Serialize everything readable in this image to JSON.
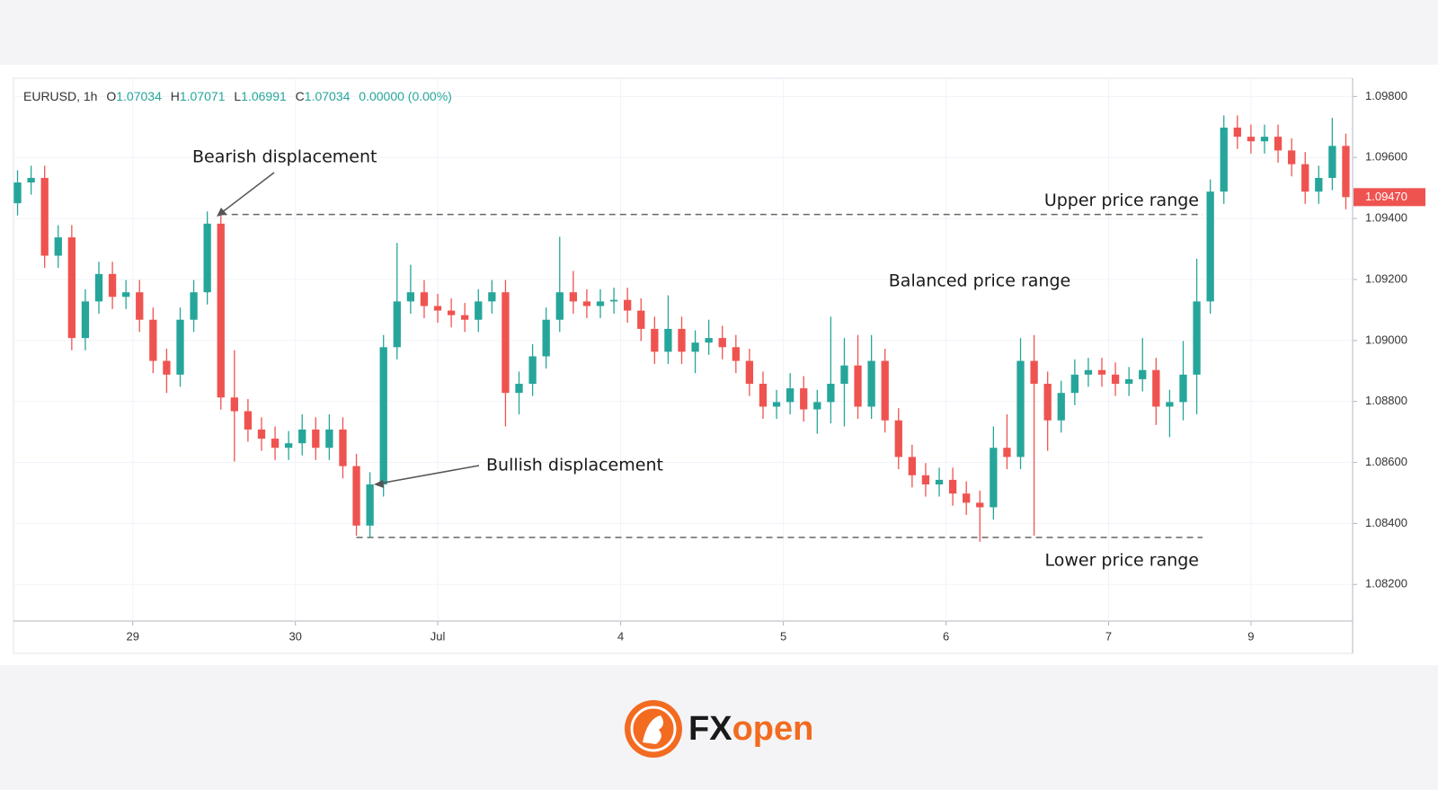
{
  "chart_data": {
    "type": "candlestick",
    "header": {
      "symbol": "EURUSD, 1h",
      "open_label": "O",
      "open": 1.07034,
      "high_label": "H",
      "high": 1.07071,
      "low_label": "L",
      "low": 1.06991,
      "close_label": "C",
      "close": 1.07034,
      "change": "0.00000 (0.00%)"
    },
    "annotations": {
      "bearish": "Bearish displacement",
      "bullish": "Bullish displacement",
      "balanced": "Balanced price range"
    },
    "levels": [
      {
        "label": "Upper price range",
        "value": 1.09413
      },
      {
        "label": "Lower price range",
        "value": 1.08354
      }
    ],
    "last_price": {
      "value": 1.0947,
      "label": "1.09470"
    },
    "up_color": "#26a69a",
    "down_color": "#ef5350",
    "xlim": [
      -0.3,
      98.5
    ],
    "xticks": [
      {
        "value": 8.5,
        "label": "29"
      },
      {
        "value": 20.5,
        "label": "30"
      },
      {
        "value": 31,
        "label": "Jul"
      },
      {
        "value": 44.5,
        "label": "4"
      },
      {
        "value": 56.5,
        "label": "5"
      },
      {
        "value": 68.5,
        "label": "6"
      },
      {
        "value": 80.5,
        "label": "7"
      },
      {
        "value": 91,
        "label": "9"
      }
    ],
    "ylim": [
      1.0808,
      1.0986
    ],
    "yticks": [
      {
        "value": 1.082,
        "label": "1.08200"
      },
      {
        "value": 1.084,
        "label": "1.08400"
      },
      {
        "value": 1.086,
        "label": "1.08600"
      },
      {
        "value": 1.088,
        "label": "1.08800"
      },
      {
        "value": 1.09,
        "label": "1.09000"
      },
      {
        "value": 1.092,
        "label": "1.09200"
      },
      {
        "value": 1.094,
        "label": "1.09400"
      },
      {
        "value": 1.096,
        "label": "1.09600"
      },
      {
        "value": 1.098,
        "label": "1.09800"
      }
    ],
    "grid": true,
    "open": [
      1.0945,
      1.09518,
      1.09533,
      1.09278,
      1.09338,
      1.09008,
      1.09128,
      1.09218,
      1.09143,
      1.09158,
      1.09068,
      1.08933,
      1.08888,
      1.09068,
      1.09158,
      1.09383,
      1.08813,
      1.08768,
      1.08708,
      1.08678,
      1.08648,
      1.08663,
      1.08708,
      1.08648,
      1.08708,
      1.08588,
      1.08393,
      1.08528,
      1.08978,
      1.09128,
      1.09158,
      1.09113,
      1.09098,
      1.09083,
      1.09068,
      1.09128,
      1.09158,
      1.08828,
      1.08858,
      1.08948,
      1.09068,
      1.09158,
      1.09128,
      1.09113,
      1.09128,
      1.09133,
      1.09098,
      1.09038,
      1.08963,
      1.09038,
      1.08963,
      1.08993,
      1.09008,
      1.08978,
      1.08933,
      1.08858,
      1.08783,
      1.08798,
      1.08843,
      1.08774,
      1.08798,
      1.08858,
      1.08918,
      1.08783,
      1.08933,
      1.08738,
      1.08618,
      1.08558,
      1.08528,
      1.08543,
      1.08498,
      1.08468,
      1.08453,
      1.08648,
      1.08618,
      1.08933,
      1.08858,
      1.08738,
      1.08828,
      1.08888,
      1.08903,
      1.08888,
      1.08858,
      1.08873,
      1.08903,
      1.08783,
      1.08798,
      1.08888,
      1.09128,
      1.09488,
      1.09698,
      1.09668,
      1.09653,
      1.09668,
      1.09623,
      1.09578,
      1.09488,
      1.09533,
      1.09638
    ],
    "high": [
      1.09558,
      1.09573,
      1.09573,
      1.09378,
      1.09378,
      1.09168,
      1.09258,
      1.09258,
      1.09198,
      1.09198,
      1.09108,
      1.08973,
      1.09108,
      1.09198,
      1.09423,
      1.09413,
      1.08968,
      1.08808,
      1.08748,
      1.08718,
      1.08703,
      1.08758,
      1.08748,
      1.08758,
      1.08748,
      1.08628,
      1.08568,
      1.09018,
      1.0932,
      1.09248,
      1.09198,
      1.09153,
      1.09138,
      1.09123,
      1.09168,
      1.09198,
      1.09198,
      1.08898,
      1.08988,
      1.09108,
      1.0934,
      1.09228,
      1.09168,
      1.09168,
      1.09173,
      1.09173,
      1.09138,
      1.09078,
      1.09148,
      1.09078,
      1.09033,
      1.09068,
      1.09048,
      1.09018,
      1.08973,
      1.08898,
      1.08838,
      1.08893,
      1.08883,
      1.08838,
      1.09078,
      1.09008,
      1.09018,
      1.09018,
      1.08973,
      1.08778,
      1.08658,
      1.08598,
      1.08583,
      1.08583,
      1.08538,
      1.08508,
      1.08718,
      1.08758,
      1.09008,
      1.09018,
      1.08898,
      1.08868,
      1.08938,
      1.08943,
      1.08943,
      1.08928,
      1.08913,
      1.09008,
      1.08943,
      1.08838,
      1.08998,
      1.09268,
      1.09528,
      1.09738,
      1.09738,
      1.09708,
      1.09708,
      1.09708,
      1.09663,
      1.09618,
      1.09573,
      1.0973,
      1.09678
    ],
    "low": [
      1.0941,
      1.09478,
      1.09238,
      1.09238,
      1.08968,
      1.08968,
      1.09088,
      1.09103,
      1.09103,
      1.09028,
      1.08893,
      1.08828,
      1.08848,
      1.09028,
      1.09118,
      1.08773,
      1.08603,
      1.08668,
      1.08638,
      1.08608,
      1.08608,
      1.08623,
      1.08608,
      1.08608,
      1.08548,
      1.0836,
      1.08353,
      1.08488,
      1.08938,
      1.09088,
      1.09073,
      1.09058,
      1.09043,
      1.09028,
      1.09028,
      1.09088,
      1.08718,
      1.08758,
      1.08818,
      1.08908,
      1.09028,
      1.09088,
      1.09073,
      1.09073,
      1.09088,
      1.09058,
      1.08998,
      1.08923,
      1.08923,
      1.08923,
      1.08893,
      1.08953,
      1.08938,
      1.08893,
      1.08818,
      1.08743,
      1.08743,
      1.08758,
      1.08734,
      1.08694,
      1.08728,
      1.08718,
      1.08743,
      1.08743,
      1.08698,
      1.08578,
      1.08518,
      1.08488,
      1.08488,
      1.08458,
      1.08428,
      1.0834,
      1.08413,
      1.08578,
      1.08578,
      1.0836,
      1.08638,
      1.08698,
      1.08788,
      1.08848,
      1.08848,
      1.08818,
      1.08818,
      1.08833,
      1.08723,
      1.08683,
      1.08738,
      1.08758,
      1.09088,
      1.09448,
      1.09628,
      1.09613,
      1.09613,
      1.09583,
      1.09538,
      1.09448,
      1.09448,
      1.09493,
      1.0943
    ],
    "close": [
      1.09518,
      1.09533,
      1.09278,
      1.09338,
      1.09008,
      1.09128,
      1.09218,
      1.09143,
      1.09158,
      1.09068,
      1.08933,
      1.08888,
      1.09068,
      1.09158,
      1.09383,
      1.08813,
      1.08768,
      1.08708,
      1.08678,
      1.08648,
      1.08663,
      1.08708,
      1.08648,
      1.08708,
      1.08588,
      1.08393,
      1.08528,
      1.08978,
      1.09128,
      1.09158,
      1.09113,
      1.09098,
      1.09083,
      1.09068,
      1.09128,
      1.09158,
      1.08828,
      1.08858,
      1.08948,
      1.09068,
      1.09158,
      1.09128,
      1.09113,
      1.09128,
      1.09133,
      1.09098,
      1.09038,
      1.08963,
      1.09038,
      1.08963,
      1.08993,
      1.09008,
      1.08978,
      1.08933,
      1.08858,
      1.08783,
      1.08798,
      1.08843,
      1.08774,
      1.08798,
      1.08858,
      1.08918,
      1.08783,
      1.08933,
      1.08738,
      1.08618,
      1.08558,
      1.08528,
      1.08543,
      1.08498,
      1.08468,
      1.08453,
      1.08648,
      1.08618,
      1.08933,
      1.08858,
      1.08738,
      1.08828,
      1.08888,
      1.08903,
      1.08888,
      1.08858,
      1.08873,
      1.08903,
      1.08783,
      1.08798,
      1.08888,
      1.09128,
      1.09488,
      1.09698,
      1.09668,
      1.09653,
      1.09668,
      1.09623,
      1.09578,
      1.09488,
      1.09533,
      1.09638,
      1.0947
    ]
  },
  "brand": {
    "fx": "FX",
    "open": "open"
  }
}
